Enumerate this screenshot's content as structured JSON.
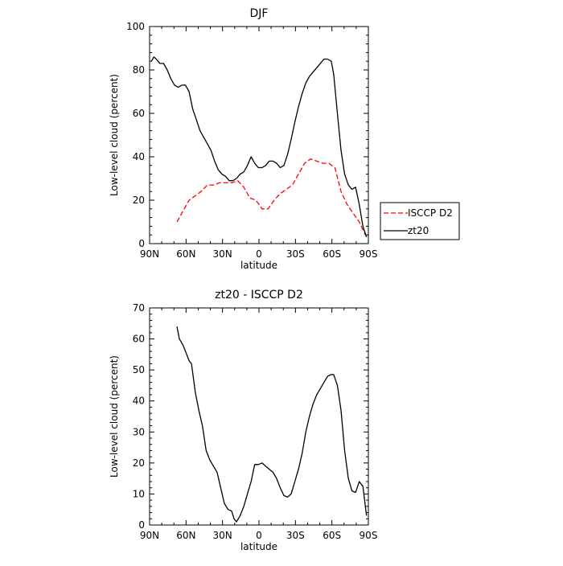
{
  "chart_data": [
    {
      "type": "line",
      "title": "DJF",
      "xlabel": "latitude",
      "ylabel": "Low-level cloud (percent)",
      "xlim": [
        90,
        -90
      ],
      "ylim": [
        0,
        100
      ],
      "x_ticks": [
        90,
        60,
        30,
        0,
        -30,
        -60,
        -90
      ],
      "x_tick_labels": [
        "90N",
        "60N",
        "30N",
        "0",
        "30S",
        "60S",
        "90S"
      ],
      "y_ticks": [
        0,
        20,
        40,
        60,
        80,
        100
      ],
      "y_tick_labels": [
        "0",
        "20",
        "40",
        "60",
        "80",
        "100"
      ],
      "legend_position": "right",
      "series": [
        {
          "name": "ISCCP D2",
          "color": "#ff0000",
          "style": "dashed",
          "x": [
            67.5,
            62.5,
            57.5,
            52.5,
            47.5,
            42.5,
            37.5,
            32.5,
            27.5,
            22.5,
            17.5,
            12.5,
            7.5,
            2.5,
            -2.5,
            -7.5,
            -12.5,
            -17.5,
            -22.5,
            -27.5,
            -32.5,
            -37.5,
            -42.5,
            -47.5,
            -52.5,
            -57.5,
            -62.5,
            -67.5,
            -72.5,
            -77.5,
            -82.5,
            -87.5
          ],
          "y": [
            10,
            15,
            20,
            22,
            24,
            27,
            27,
            28,
            28,
            28,
            29,
            26,
            21,
            20,
            16,
            16,
            20,
            23,
            25,
            27,
            32,
            37,
            39,
            38,
            37,
            37,
            35,
            24,
            18,
            14,
            10,
            4
          ]
        },
        {
          "name": "zt20",
          "color": "#000000",
          "style": "solid",
          "x": [
            88.5,
            86.5,
            84.5,
            81.5,
            78.5,
            75.5,
            72.5,
            69.5,
            66.5,
            63.5,
            60.5,
            57.5,
            54.5,
            51.5,
            48.5,
            45.5,
            42.5,
            39.5,
            36.5,
            33.5,
            30.5,
            27.5,
            24.5,
            21.5,
            18.5,
            15.5,
            12.5,
            9.5,
            6.5,
            3.5,
            0.5,
            -2.5,
            -5.5,
            -8.5,
            -11.5,
            -14.5,
            -17.5,
            -20.5,
            -23.5,
            -26.5,
            -29.5,
            -32.5,
            -35.5,
            -38.5,
            -41.5,
            -44.5,
            -47.5,
            -50.5,
            -53.5,
            -56.5,
            -59.5,
            -61.5,
            -64.5,
            -67.5,
            -70.5,
            -73.5,
            -76.5,
            -79.5,
            -82.5,
            -85.5,
            -88.5
          ],
          "y": [
            84,
            86,
            85,
            83,
            83,
            80,
            76,
            73,
            72,
            73,
            73,
            70,
            62,
            57,
            52,
            49,
            46,
            43,
            38,
            34,
            32,
            31,
            29,
            29,
            30,
            32,
            33,
            36,
            40,
            37,
            35,
            35,
            36,
            38,
            38,
            37,
            35,
            36,
            41,
            48,
            56,
            63,
            69,
            74,
            77,
            79,
            81,
            83,
            85,
            85,
            84,
            78,
            60,
            43,
            32,
            27,
            25,
            26,
            18,
            8,
            3
          ]
        }
      ]
    },
    {
      "type": "line",
      "title": "zt20 - ISCCP D2",
      "xlabel": "latitude",
      "ylabel": "Low-level cloud (percent)",
      "xlim": [
        90,
        -90
      ],
      "ylim": [
        0,
        70
      ],
      "x_ticks": [
        90,
        60,
        30,
        0,
        -30,
        -60,
        -90
      ],
      "x_tick_labels": [
        "90N",
        "60N",
        "30N",
        "0",
        "30S",
        "60S",
        "90S"
      ],
      "y_ticks": [
        0,
        10,
        20,
        30,
        40,
        50,
        60,
        70
      ],
      "y_tick_labels": [
        "0",
        "10",
        "20",
        "30",
        "40",
        "50",
        "60",
        "70"
      ],
      "series": [
        {
          "color": "#000000",
          "style": "solid",
          "x": [
            67.5,
            65.5,
            62.5,
            59.5,
            57.5,
            55.5,
            52.5,
            49.5,
            46.5,
            43.5,
            40.5,
            37.5,
            34.5,
            31.5,
            28.5,
            25.5,
            22.5,
            20.5,
            18.5,
            15.5,
            12.5,
            9.5,
            6.5,
            3.5,
            0.5,
            -2.5,
            -5.5,
            -8.5,
            -11.5,
            -14.5,
            -17.5,
            -20.5,
            -23.5,
            -26.5,
            -29.5,
            -32.5,
            -35.5,
            -38.5,
            -41.5,
            -44.5,
            -47.5,
            -50.5,
            -53.5,
            -56.5,
            -59.5,
            -61.5,
            -64.5,
            -67.5,
            -70.5,
            -73.5,
            -76.5,
            -79.5,
            -82.5,
            -85.5,
            -88.5
          ],
          "y": [
            64,
            60,
            58,
            55,
            53,
            52,
            43,
            37,
            32,
            24,
            21,
            19,
            17,
            12,
            7,
            5,
            4.5,
            2,
            1,
            3,
            6,
            10,
            14,
            19.5,
            19.5,
            20,
            19,
            18,
            17,
            15,
            12,
            9.5,
            9,
            10,
            14,
            18,
            23,
            30,
            35,
            39,
            42,
            44,
            46,
            48,
            48.5,
            48.5,
            45,
            37,
            24,
            15,
            11,
            10.5,
            14,
            12.5,
            3
          ]
        }
      ]
    }
  ]
}
